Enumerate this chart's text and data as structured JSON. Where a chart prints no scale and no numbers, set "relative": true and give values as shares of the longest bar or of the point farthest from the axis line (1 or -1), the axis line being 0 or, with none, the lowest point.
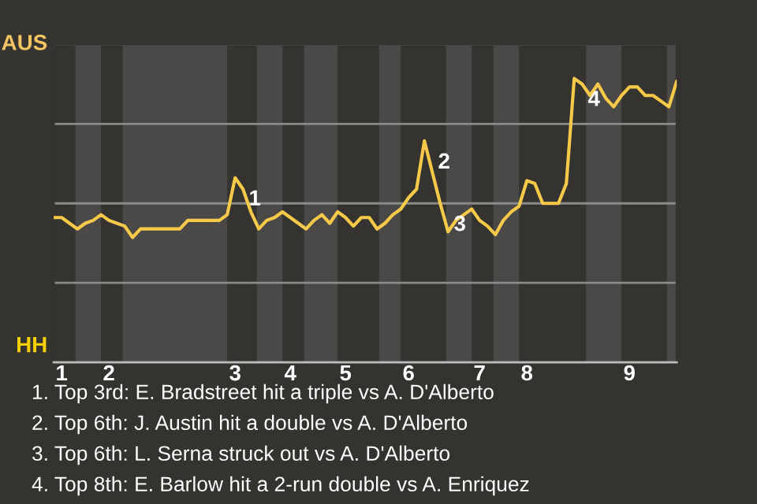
{
  "chart_data": {
    "type": "line",
    "relative": true,
    "categories": [
      null,
      "1",
      null,
      null,
      null,
      null,
      null,
      "2",
      null,
      null,
      null,
      null,
      null,
      null,
      null,
      null,
      null,
      null,
      null,
      null,
      null,
      null,
      null,
      "3",
      null,
      null,
      null,
      null,
      null,
      null,
      "4",
      null,
      null,
      null,
      null,
      null,
      null,
      "5",
      null,
      null,
      null,
      null,
      null,
      null,
      null,
      "6",
      null,
      null,
      null,
      null,
      null,
      null,
      null,
      null,
      "7",
      null,
      null,
      null,
      null,
      null,
      "8",
      null,
      null,
      null,
      null,
      null,
      null,
      null,
      null,
      null,
      null,
      null,
      null,
      "9",
      null,
      null,
      null,
      null,
      null,
      null
    ],
    "series": [
      {
        "color": "#f7c948",
        "values": [
          0.51,
          0.51,
          0.49,
          0.47,
          0.49,
          0.5,
          0.52,
          0.5,
          0.49,
          0.48,
          0.44,
          0.47,
          0.47,
          0.47,
          0.47,
          0.47,
          0.47,
          0.5,
          0.5,
          0.5,
          0.5,
          0.5,
          0.52,
          0.65,
          0.61,
          0.53,
          0.47,
          0.5,
          0.51,
          0.53,
          0.51,
          0.49,
          0.47,
          0.5,
          0.52,
          0.49,
          0.53,
          0.51,
          0.48,
          0.51,
          0.51,
          0.47,
          0.49,
          0.52,
          0.54,
          0.58,
          0.61,
          0.78,
          0.67,
          0.56,
          0.46,
          0.5,
          0.52,
          0.54,
          0.5,
          0.48,
          0.45,
          0.5,
          0.53,
          0.55,
          0.64,
          0.63,
          0.56,
          0.56,
          0.56,
          0.63,
          1,
          0.98,
          0.94,
          0.98,
          0.93,
          0.9,
          0.94,
          0.97,
          0.97,
          0.94,
          0.94,
          0.92,
          0.9,
          0.99
        ]
      }
    ],
    "tick_labels": "x",
    "grid": "y",
    "marker": "none",
    "line_style": "solid",
    "annotations": [
      "AUS",
      "HH",
      "1",
      "2",
      "3",
      "4",
      "1. Top 3rd: E. Bradstreet hit a triple vs A. D'Alberto",
      "2. Top 6th: J. Austin hit a double vs A. D'Alberto",
      "3. Top 6th: L. Serna struck out vs A. D'Alberto",
      "4. Top 8th: E. Barlow hit a 2-run double vs A. Enriquez"
    ]
  }
}
